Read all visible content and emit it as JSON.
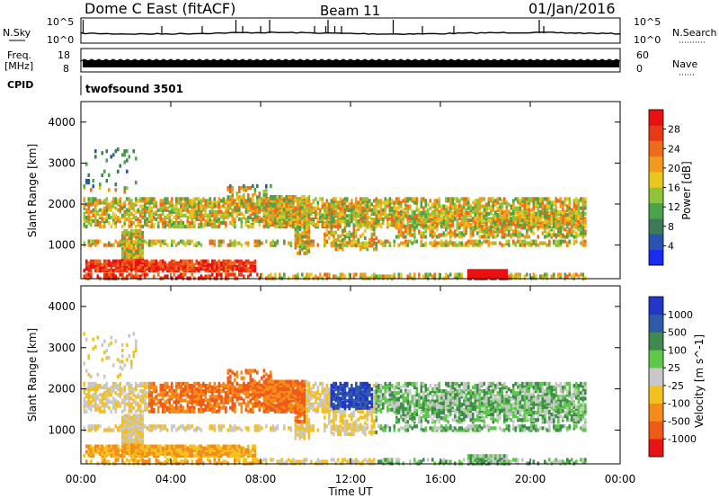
{
  "header": {
    "station": "Dome C East (fitACF)",
    "beam": "Beam 11",
    "date": "01/Jan/2016"
  },
  "chart_data": [
    {
      "type": "line",
      "panel": "noise",
      "left_label": "N.Sky",
      "right_label": "N.Search",
      "left_ticks": [
        "10^5",
        "10^0"
      ],
      "right_ticks": [
        "10^5",
        "10^0"
      ]
    },
    {
      "type": "bar",
      "panel": "frequency",
      "left_label": "Freq.",
      "left_unit": "[MHz]",
      "right_label": "Nave",
      "left_ticks": [
        "18",
        "8"
      ],
      "right_ticks": [
        "60",
        "0"
      ],
      "cpid_label": "CPID",
      "cpid_text": "twofsound 3501"
    },
    {
      "type": "heatmap",
      "panel": "power",
      "ylabel": "Slant Range [km]",
      "ylim": [
        180,
        4500
      ],
      "yticks": [
        1000,
        2000,
        3000,
        4000
      ],
      "xlim": [
        0,
        24
      ],
      "colorbar_label": "Power [dB]",
      "colorbar_ticks": [
        "4",
        "8",
        "12",
        "16",
        "20",
        "24",
        "28"
      ],
      "colorbar_colors": [
        "#1a2bef",
        "#2a52b0",
        "#3c7a5a",
        "#4aa24a",
        "#8fc43a",
        "#e8c81e",
        "#f29a1e",
        "#ef6b1c",
        "#e83a16",
        "#e81010"
      ]
    },
    {
      "type": "heatmap",
      "panel": "velocity",
      "ylabel": "Slant Range [km]",
      "ylim": [
        180,
        4500
      ],
      "yticks": [
        1000,
        2000,
        3000,
        4000
      ],
      "xlim": [
        0,
        24
      ],
      "xticks": [
        "00:00",
        "04:00",
        "08:00",
        "12:00",
        "16:00",
        "20:00",
        "00:00"
      ],
      "xlabel": "Time UT",
      "colorbar_label": "Velocity [m s^-1]",
      "colorbar_ticks": [
        "1000",
        "500",
        "100",
        "25",
        "-25",
        "-100",
        "-500",
        "-1000"
      ],
      "colorbar_colors": [
        "#2237c8",
        "#2f5aa8",
        "#3f8a4e",
        "#5fc84a",
        "#c8c8c8",
        "#f4c01e",
        "#f48c1a",
        "#f05a18",
        "#e81414"
      ]
    }
  ]
}
